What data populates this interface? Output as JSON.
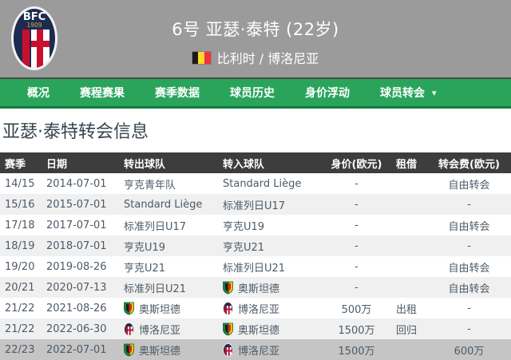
{
  "icons": {
    "chevron_down": "▾"
  },
  "colors": {
    "header_bg": "#9b9b9b",
    "nav_bg": "#2aa45b",
    "nav_border_bottom": "#0f7e3e",
    "table_header_bg": "#3d3d3d",
    "row_alt_bg": "#f0f0f0",
    "row_highlight_bg": "#c5c5c5",
    "title_color": "#35444c"
  },
  "header": {
    "title": "6号 亚瑟·泰特 (22岁)",
    "nationality_club": "比利时 / 博洛尼亚",
    "club_logo": "bologna-crest",
    "flag": "belgium-flag"
  },
  "nav": {
    "items": [
      {
        "label": "概况"
      },
      {
        "label": "赛程赛果"
      },
      {
        "label": "赛季数据"
      },
      {
        "label": "球员历史"
      },
      {
        "label": "身价浮动"
      },
      {
        "label": "球员转会",
        "has_dropdown": true
      }
    ]
  },
  "section": {
    "title": "亚瑟·泰特转会信息"
  },
  "table": {
    "columns": [
      "赛季",
      "日期",
      "转出球队",
      "转入球队",
      "身价(欧元)",
      "租借",
      "转会费(欧元)"
    ],
    "rows": [
      {
        "season": "14/15",
        "date": "2014-07-01",
        "out": {
          "name": "亨克青年队"
        },
        "in": {
          "name": "Standard Liège"
        },
        "value": "-",
        "loan": "",
        "fee": "自由转会",
        "highlighted": false
      },
      {
        "season": "15/16",
        "date": "2015-07-01",
        "out": {
          "name": "Standard Liège"
        },
        "in": {
          "name": "标准列日U17"
        },
        "value": "-",
        "loan": "",
        "fee": "-",
        "highlighted": false
      },
      {
        "season": "17/18",
        "date": "2017-07-01",
        "out": {
          "name": "标准列日U17"
        },
        "in": {
          "name": "亨克U19"
        },
        "value": "-",
        "loan": "",
        "fee": "自由转会",
        "highlighted": false
      },
      {
        "season": "18/19",
        "date": "2018-07-01",
        "out": {
          "name": "亨克U19"
        },
        "in": {
          "name": "亨克U21"
        },
        "value": "-",
        "loan": "",
        "fee": "-",
        "highlighted": false
      },
      {
        "season": "19/20",
        "date": "2019-08-26",
        "out": {
          "name": "亨克U21"
        },
        "in": {
          "name": "标准列日U21"
        },
        "value": "-",
        "loan": "",
        "fee": "自由转会",
        "highlighted": false
      },
      {
        "season": "20/21",
        "date": "2020-07-13",
        "out": {
          "name": "标准列日U21"
        },
        "in": {
          "name": "奥斯坦德",
          "logo": "oostende-crest"
        },
        "value": "-",
        "loan": "",
        "fee": "自由转会",
        "highlighted": false
      },
      {
        "season": "21/22",
        "date": "2021-08-26",
        "out": {
          "name": "奥斯坦德",
          "logo": "oostende-crest"
        },
        "in": {
          "name": "博洛尼亚",
          "logo": "bologna-crest"
        },
        "value": "500万",
        "loan": "出租",
        "fee": "-",
        "highlighted": false
      },
      {
        "season": "21/22",
        "date": "2022-06-30",
        "out": {
          "name": "博洛尼亚",
          "logo": "bologna-crest"
        },
        "in": {
          "name": "奥斯坦德",
          "logo": "oostende-crest"
        },
        "value": "1500万",
        "loan": "回归",
        "fee": "-",
        "highlighted": false
      },
      {
        "season": "22/23",
        "date": "2022-07-01",
        "out": {
          "name": "奥斯坦德",
          "logo": "oostende-crest"
        },
        "in": {
          "name": "博洛尼亚",
          "logo": "bologna-crest"
        },
        "value": "1500万",
        "loan": "",
        "fee": "600万",
        "highlighted": true
      }
    ]
  }
}
